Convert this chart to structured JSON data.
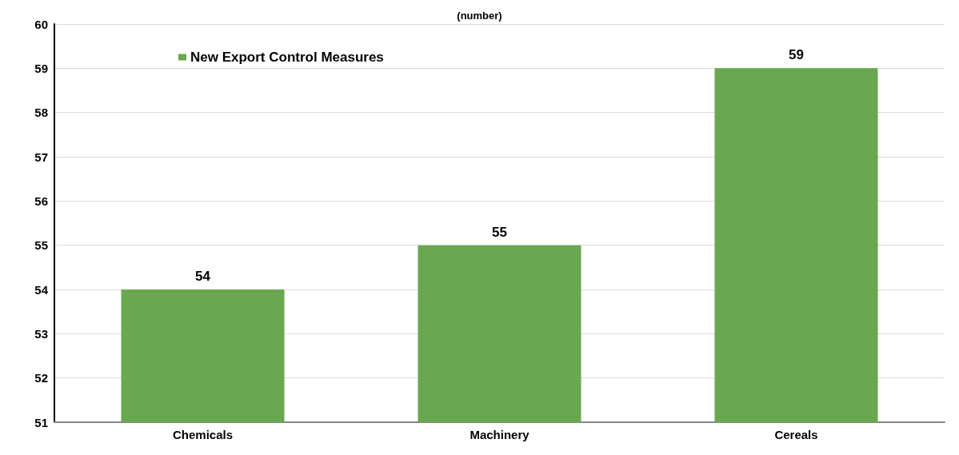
{
  "chart_data": {
    "type": "bar",
    "title": "(number)",
    "categories": [
      "Chemicals",
      "Machinery",
      "Cereals"
    ],
    "series": [
      {
        "name": "New Export Control Measures",
        "color": "#6aa84f",
        "values": [
          54,
          55,
          59
        ]
      }
    ],
    "ylim": [
      51,
      60
    ],
    "yticks": [
      51,
      52,
      53,
      54,
      55,
      56,
      57,
      58,
      59,
      60
    ],
    "grid": "y",
    "legend": "top left",
    "data_labels": true
  }
}
